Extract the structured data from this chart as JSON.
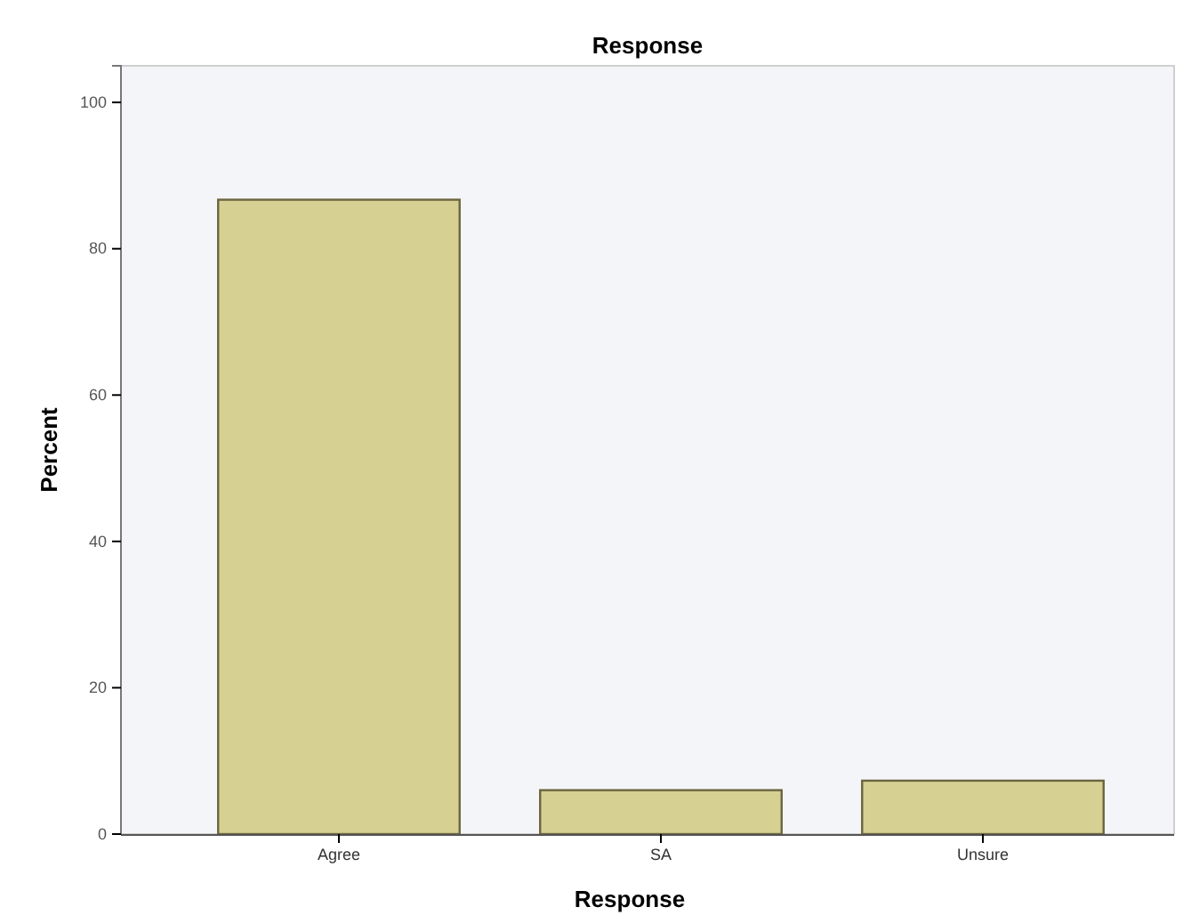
{
  "chart_data": {
    "type": "bar",
    "title": "Response",
    "xlabel": "Response",
    "ylabel": "Percent",
    "categories": [
      "Agree",
      "SA",
      "Unsure"
    ],
    "values": [
      86.7,
      6.0,
      7.3
    ],
    "color": "#d6d192",
    "ylim": [
      0,
      105
    ],
    "yticks": [
      0,
      20,
      40,
      60,
      80,
      100
    ]
  }
}
